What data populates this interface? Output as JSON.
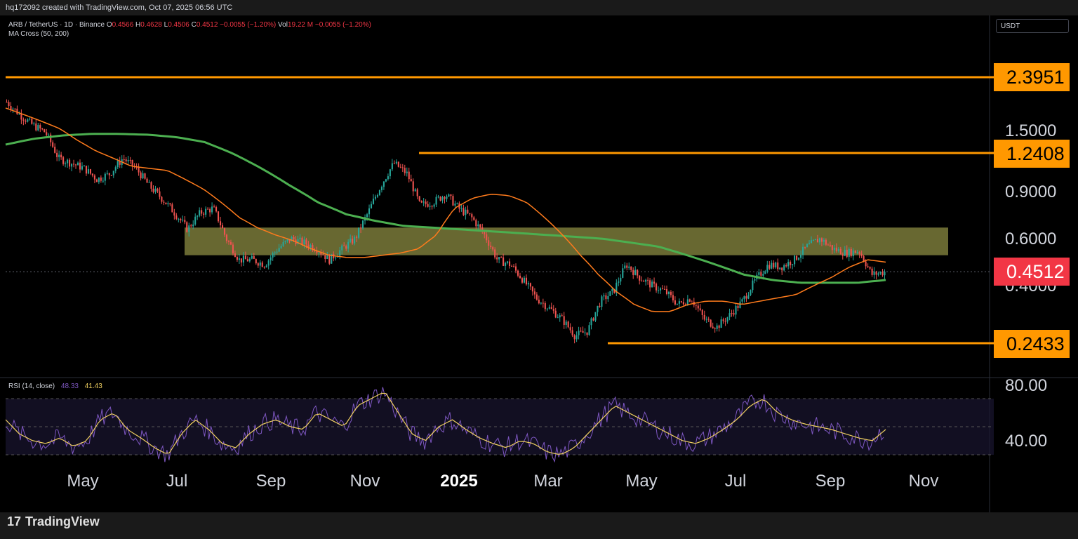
{
  "header": {
    "credit": "hq172092 created with TradingView.com, Oct 07, 2025 06:56 UTC"
  },
  "legend": {
    "symbol": "ARB / TetherUS · 1D · Binance",
    "O": "0.4566",
    "H": "0.4628",
    "L": "0.4506",
    "C": "0.4512",
    "change": "−0.0055 (−1.20%)",
    "vol_label": "Vol",
    "vol": "19.22 M",
    "vol_change": "−0.0055 (−1.20%)",
    "indicator": "MA Cross (50, 200)"
  },
  "currency_button": "USDT",
  "rsi_legend": {
    "label": "RSI (14, close)",
    "rsi": "48.33",
    "ma": "41.43"
  },
  "branding": {
    "name": "TradingView",
    "logo": "17"
  },
  "colors": {
    "bg": "#000000",
    "orange": "#ff9800",
    "green_ma": "#4caf50",
    "orange_ma": "#ff7b1c",
    "up": "#26a69a",
    "down": "#ef5350",
    "zone": "#7a7a3a",
    "rsi": "#7e57c2",
    "rsi_ma": "#f0d060",
    "price_tag": "#f23645"
  },
  "chart_data": [
    {
      "type": "candlestick",
      "scale": "log",
      "y_ticks": [
        "1.5000",
        "0.9000",
        "0.6000",
        "0.4000"
      ],
      "x_ticks": [
        "May",
        "Jul",
        "Sep",
        "Nov",
        "2025",
        "Mar",
        "May",
        "Jul",
        "Sep",
        "Nov"
      ],
      "levels": [
        "2.3951",
        "1.2408",
        "0.2433"
      ],
      "last_price": "0.4512",
      "zone": {
        "low": 0.52,
        "high": 0.66
      },
      "close_path": [
        1.95,
        1.75,
        1.6,
        1.5,
        1.2,
        1.15,
        1.1,
        1.0,
        1.05,
        1.2,
        1.1,
        0.95,
        0.85,
        0.75,
        0.65,
        0.75,
        0.78,
        0.6,
        0.5,
        0.5,
        0.48,
        0.55,
        0.6,
        0.58,
        0.55,
        0.5,
        0.55,
        0.6,
        0.75,
        0.95,
        1.15,
        1.05,
        0.8,
        0.82,
        0.88,
        0.78,
        0.72,
        0.62,
        0.5,
        0.48,
        0.42,
        0.36,
        0.33,
        0.3,
        0.26,
        0.27,
        0.35,
        0.38,
        0.48,
        0.43,
        0.4,
        0.38,
        0.34,
        0.36,
        0.3,
        0.28,
        0.31,
        0.35,
        0.42,
        0.48,
        0.47,
        0.5,
        0.56,
        0.6,
        0.55,
        0.53,
        0.54,
        0.44,
        0.45
      ],
      "ma50_path": [
        1.85,
        1.75,
        1.65,
        1.55,
        1.4,
        1.28,
        1.2,
        1.12,
        1.1,
        1.08,
        1.0,
        0.92,
        0.82,
        0.72,
        0.66,
        0.62,
        0.59,
        0.55,
        0.52,
        0.51,
        0.51,
        0.52,
        0.53,
        0.55,
        0.62,
        0.78,
        0.85,
        0.88,
        0.87,
        0.82,
        0.72,
        0.62,
        0.52,
        0.44,
        0.38,
        0.34,
        0.32,
        0.32,
        0.34,
        0.35,
        0.35,
        0.34,
        0.35,
        0.36,
        0.37,
        0.4,
        0.43,
        0.47,
        0.5,
        0.49
      ],
      "ma200_path": [
        1.35,
        1.42,
        1.46,
        1.48,
        1.48,
        1.47,
        1.44,
        1.38,
        1.25,
        1.1,
        0.95,
        0.82,
        0.74,
        0.7,
        0.67,
        0.66,
        0.65,
        0.64,
        0.63,
        0.62,
        0.61,
        0.6,
        0.58,
        0.56,
        0.52,
        0.48,
        0.44,
        0.42,
        0.41,
        0.41,
        0.41,
        0.42
      ],
      "rsi_path": [
        55,
        45,
        40,
        38,
        42,
        36,
        40,
        55,
        60,
        48,
        42,
        35,
        30,
        45,
        55,
        48,
        38,
        35,
        45,
        52,
        55,
        50,
        48,
        60,
        55,
        50,
        65,
        70,
        75,
        60,
        45,
        40,
        50,
        55,
        48,
        42,
        38,
        35,
        40,
        38,
        32,
        30,
        35,
        45,
        55,
        65,
        60,
        55,
        50,
        45,
        40,
        38,
        42,
        48,
        55,
        65,
        70,
        60,
        55,
        52,
        50,
        48,
        45,
        42,
        40,
        48
      ],
      "rsi_ticks": [
        "80.00",
        "40.00"
      ]
    }
  ]
}
